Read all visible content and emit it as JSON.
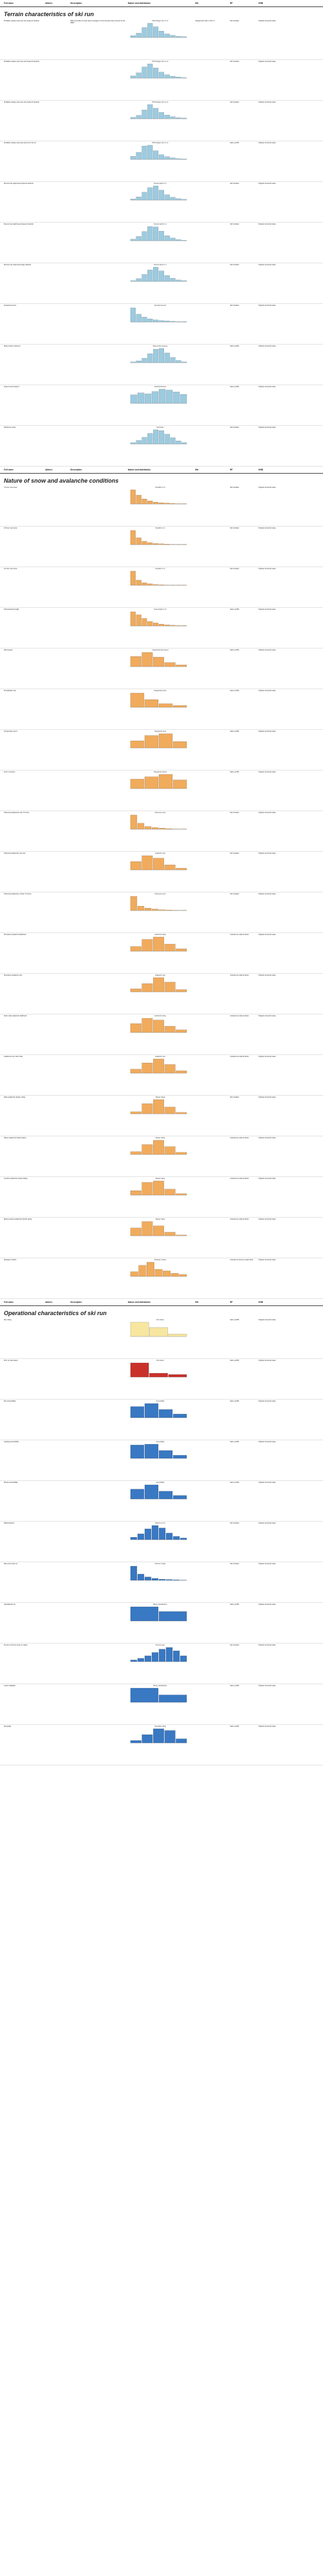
{
  "columns": [
    "Full name",
    "Abbrev.",
    "Description",
    "Nature and distribution",
    "Sfd",
    "RF",
    "GNB"
  ],
  "sections": [
    {
      "title": "Terrain characteristics of ski run",
      "color": "#9ccbe0",
      "rows": [
        {
          "full": "Probable release area max size frequent hazards",
          "abbrev": "",
          "desc": "95th percentile of mean area of polygons of the forecast area covered by the DEM.",
          "chart_title": "PRA Polygon size in m²",
          "sfd": "Categorical (n=5): 0–50 m²...",
          "rf": "Not included",
          "gnb": "Original numerical value",
          "bars": [
            5,
            12,
            28,
            40,
            30,
            18,
            10,
            6,
            3,
            2
          ]
        },
        {
          "full": "Probable release area max size frequent hazards",
          "abbrev": "",
          "desc": "",
          "chart_title": "PRA Polygon size in m²",
          "sfd": "",
          "rf": "Not included",
          "gnb": "Original numerical value",
          "bars": [
            6,
            14,
            30,
            38,
            27,
            16,
            9,
            5,
            3,
            1
          ]
        },
        {
          "full": "Probable release area max size frequent hazards",
          "abbrev": "",
          "desc": "",
          "chart_title": "PRA Polygon size in m²",
          "sfd": "",
          "rf": "Not included",
          "gnb": "Original numerical value",
          "bars": [
            4,
            10,
            26,
            42,
            31,
            19,
            11,
            6,
            3,
            2
          ]
        },
        {
          "full": "Probable release area max percent of ski run",
          "abbrev": "",
          "desc": "",
          "chart_title": "PRA Polygon size in m²",
          "sfd": "",
          "rf": "Same as BN",
          "gnb": "Original numerical value",
          "bars": [
            8,
            18,
            34,
            36,
            22,
            12,
            7,
            4,
            2,
            1
          ]
        },
        {
          "full": "Runout max depth area frequent hazards",
          "abbrev": "",
          "desc": "",
          "chart_title": "Runout depth in m",
          "sfd": "",
          "rf": "Not included",
          "gnb": "Original numerical value",
          "bars": [
            3,
            9,
            22,
            35,
            40,
            28,
            15,
            8,
            4,
            2
          ]
        },
        {
          "full": "Runout max depth area frequent hazards",
          "abbrev": "",
          "desc": "",
          "chart_title": "Runout depth in m",
          "sfd": "",
          "rf": "Not included",
          "gnb": "Original numerical value",
          "bars": [
            4,
            11,
            24,
            37,
            36,
            25,
            13,
            7,
            3,
            1
          ]
        },
        {
          "full": "Runout max depth area large hazards",
          "abbrev": "",
          "desc": "",
          "chart_title": "Runout depth in m",
          "sfd": "",
          "rf": "Not included",
          "gnb": "Original numerical value",
          "bars": [
            2,
            8,
            20,
            33,
            41,
            30,
            17,
            9,
            4,
            2
          ]
        },
        {
          "full": "Forested percent",
          "abbrev": "",
          "desc": "",
          "chart_title": "Forested percent",
          "sfd": "",
          "rf": "Not included",
          "gnb": "Original numerical value",
          "bars": [
            40,
            22,
            14,
            9,
            6,
            4,
            3,
            2,
            1,
            1
          ]
        },
        {
          "full": "Slope incline maximum",
          "abbrev": "",
          "desc": "",
          "chart_title": "Slope incline degrees",
          "sfd": "",
          "rf": "Same as BN",
          "gnb": "Original numerical value",
          "bars": [
            2,
            5,
            12,
            24,
            36,
            38,
            26,
            14,
            6,
            2
          ]
        },
        {
          "full": "Aspect most frequent",
          "abbrev": "",
          "desc": "",
          "chart_title": "Cardinal direction",
          "sfd": "",
          "rf": "Same as BN",
          "gnb": "Original numerical value",
          "bars": [
            18,
            22,
            20,
            25,
            30,
            28,
            24,
            19
          ]
        },
        {
          "full": "Northness mean",
          "abbrev": "",
          "desc": "",
          "chart_title": "Northness",
          "sfd": "",
          "rf": "Not included",
          "gnb": "Original numerical value",
          "bars": [
            3,
            8,
            15,
            24,
            32,
            30,
            22,
            14,
            7,
            3
          ]
        }
      ]
    },
    {
      "title": "Nature of snow and avalanche conditions",
      "color": "#f0ab5d",
      "rows": [
        {
          "full": "72 hour new snow",
          "abbrev": "",
          "desc": "",
          "chart_title": "Snowfall in cm",
          "sfd": "",
          "rf": "Not included",
          "gnb": "Original numerical value",
          "bars": [
            45,
            28,
            16,
            10,
            6,
            4,
            3,
            2,
            1,
            1
          ]
        },
        {
          "full": "24 hour new snow",
          "abbrev": "",
          "desc": "",
          "chart_title": "Snowfall in cm",
          "sfd": "",
          "rf": "Not included",
          "gnb": "Original numerical value",
          "bars": [
            50,
            24,
            12,
            7,
            4,
            3,
            2,
            1,
            1,
            1
          ]
        },
        {
          "full": "12 hour new snow",
          "abbrev": "",
          "desc": "",
          "chart_title": "Snowfall in cm",
          "sfd": "",
          "rf": "Not included",
          "gnb": "Original numerical value",
          "bars": [
            55,
            20,
            10,
            6,
            3,
            2,
            1,
            1,
            1,
            1
          ]
        },
        {
          "full": "Total transport height",
          "abbrev": "",
          "desc": "",
          "chart_title": "Snow height in cm",
          "sfd": "",
          "rf": "Same as BN",
          "gnb": "Original numerical value",
          "bars": [
            38,
            30,
            20,
            12,
            8,
            5,
            3,
            2,
            1,
            1
          ]
        },
        {
          "full": "Wind speed",
          "abbrev": "",
          "desc": "",
          "chart_title": "Categorical wind speed",
          "sfd": "",
          "rf": "Same as BN",
          "gnb": "Original numerical value",
          "bars": [
            30,
            42,
            28,
            12,
            5
          ]
        },
        {
          "full": "Precipitation rate",
          "abbrev": "",
          "desc": "",
          "chart_title": "Categorical precip.",
          "sfd": "",
          "rf": "Same as BN",
          "gnb": "Original numerical value",
          "bars": [
            48,
            26,
            12,
            6
          ]
        },
        {
          "full": "Temperature trend",
          "abbrev": "",
          "desc": "",
          "chart_title": "Categorical temp",
          "sfd": "",
          "rf": "Same as BN",
          "gnb": "Original numerical value",
          "bars": [
            20,
            35,
            40,
            18
          ]
        },
        {
          "full": "Form of season",
          "abbrev": "",
          "desc": "",
          "chart_title": "Categorical season",
          "sfd": "",
          "rf": "Same as BN",
          "gnb": "Original numerical value",
          "bars": [
            24,
            30,
            36,
            22
          ]
        },
        {
          "full": "Observed avalanches last 72 hours",
          "abbrev": "",
          "desc": "",
          "chart_title": "Observed count",
          "sfd": "",
          "rf": "Not included",
          "gnb": "Original numerical value",
          "bars": [
            52,
            22,
            10,
            6,
            4,
            2,
            1,
            1
          ]
        },
        {
          "full": "Observed avalanche max size",
          "abbrev": "",
          "desc": "",
          "chart_title": "Avalanche size",
          "sfd": "",
          "rf": "Not included",
          "gnb": "Original numerical value",
          "bars": [
            20,
            34,
            28,
            12,
            4
          ]
        },
        {
          "full": "Observed avalanche number 72 hours",
          "abbrev": "",
          "desc": "",
          "chart_title": "Observed count",
          "sfd": "",
          "rf": "Not included",
          "gnb": "Original numerical value",
          "bars": [
            58,
            18,
            10,
            6,
            3,
            2,
            1,
            1
          ]
        },
        {
          "full": "Persistent avalanche likelihood",
          "abbrev": "",
          "desc": "",
          "chart_title": "Likelihood rating",
          "sfd": "",
          "rf": "Included as ordered factor",
          "gnb": "Original numerical value",
          "bars": [
            12,
            30,
            36,
            18,
            6
          ]
        },
        {
          "full": "Persistent avalanche size",
          "abbrev": "",
          "desc": "",
          "chart_title": "Avalanche size",
          "sfd": "",
          "rf": "Included as ordered factor",
          "gnb": "Original numerical value",
          "bars": [
            8,
            22,
            38,
            26,
            6
          ]
        },
        {
          "full": "Storm slab avalanche likelihood",
          "abbrev": "",
          "desc": "",
          "chart_title": "Likelihood rating",
          "sfd": "",
          "rf": "Included as ordered factor",
          "gnb": "Original numerical value",
          "bars": [
            20,
            32,
            28,
            14,
            6
          ]
        },
        {
          "full": "Avalanche size storm slab",
          "abbrev": "",
          "desc": "",
          "chart_title": "Avalanche size",
          "sfd": "",
          "rf": "Included as ordered factor",
          "gnb": "Original numerical value",
          "bars": [
            10,
            26,
            36,
            22,
            6
          ]
        },
        {
          "full": "Daily avalanche danger rating",
          "abbrev": "",
          "desc": "",
          "chart_title": "Danger rating",
          "sfd": "",
          "rf": "Not included",
          "gnb": "Original numerical value",
          "bars": [
            6,
            30,
            42,
            20,
            4
          ]
        },
        {
          "full": "Alpine avalanche hazard rating",
          "abbrev": "",
          "desc": "",
          "chart_title": "Danger rating",
          "sfd": "",
          "rf": "Included as ordered factor",
          "gnb": "Original numerical value",
          "bars": [
            8,
            28,
            40,
            22,
            6
          ]
        },
        {
          "full": "Treeline avalanche hazard rating",
          "abbrev": "",
          "desc": "",
          "chart_title": "Danger rating",
          "sfd": "",
          "rf": "Included as ordered factor",
          "gnb": "Original numerical value",
          "bars": [
            12,
            34,
            38,
            16,
            4
          ]
        },
        {
          "full": "Below treeline avalanche hazard rating",
          "abbrev": "",
          "desc": "",
          "chart_title": "Danger rating",
          "sfd": "",
          "rf": "Included as ordered factor",
          "gnb": "Original numerical value",
          "bars": [
            22,
            40,
            28,
            10,
            2
          ]
        },
        {
          "full": "Strategic mindset",
          "abbrev": "",
          "desc": "",
          "chart_title": "Strategic mindset",
          "sfd": "",
          "rf": "Included as dummy coded factor",
          "gnb": "Original numerical value",
          "bars": [
            12,
            28,
            36,
            18,
            14,
            8,
            5
          ]
        }
      ]
    },
    {
      "title": "Operational characteristics of ski run",
      "color": "#3978c2",
      "rows": [
        {
          "full": "Run rating",
          "abbrev": "",
          "desc": "",
          "chart_title": "Run status",
          "sfd": "",
          "rf": "Same as BN",
          "gnb": "Original numerical value",
          "bars": [
            48,
            30,
            8
          ],
          "colors": [
            "#f6e6a0",
            "#f6e6a0",
            "#f6e6a0"
          ]
        },
        {
          "full": "Prior run last status",
          "abbrev": "",
          "desc": "",
          "chart_title": "Run status",
          "sfd": "",
          "rf": "Same as BN",
          "gnb": "Original numerical value",
          "bars": [
            44,
            12,
            8
          ],
          "colors": [
            "#c9322b",
            "#c9322b",
            "#c9322b"
          ]
        },
        {
          "full": "Run accessibility",
          "abbrev": "",
          "desc": "",
          "chart_title": "Accessibility",
          "sfd": "",
          "rf": "Same as BN",
          "gnb": "Original numerical value",
          "bars": [
            30,
            38,
            22,
            10
          ]
        },
        {
          "full": "Landing accessibility",
          "abbrev": "",
          "desc": "",
          "chart_title": "Accessibility",
          "sfd": "",
          "rf": "Same as BN",
          "gnb": "Original numerical value",
          "bars": [
            34,
            36,
            20,
            8
          ]
        },
        {
          "full": "Pickup accessibility",
          "abbrev": "",
          "desc": "",
          "chart_title": "Accessibility",
          "sfd": "",
          "rf": "Same as BN",
          "gnb": "Original numerical value",
          "bars": [
            28,
            40,
            22,
            10
          ]
        },
        {
          "full": "Flight distance",
          "abbrev": "",
          "desc": "",
          "chart_title": "Distance in km",
          "sfd": "",
          "rf": "Not included",
          "gnb": "Original numerical value",
          "bars": [
            6,
            14,
            26,
            34,
            28,
            16,
            8,
            4
          ]
        },
        {
          "full": "Days since last run",
          "abbrev": "",
          "desc": "",
          "chart_title": "Number of days",
          "sfd": "",
          "rf": "Not included",
          "gnb": "Original numerical value",
          "bars": [
            50,
            22,
            12,
            7,
            4,
            3,
            2,
            1
          ]
        },
        {
          "full": "Operational rule",
          "abbrev": "",
          "desc": "",
          "chart_title": "Binary classification",
          "sfd": "",
          "rf": "Same as BN",
          "gnb": "Original numerical value",
          "bars": [
            42,
            28
          ]
        },
        {
          "full": "Percent of tenure area run status",
          "abbrev": "",
          "desc": "",
          "chart_title": "Percent open",
          "sfd": "",
          "rf": "Not included",
          "gnb": "Original numerical value",
          "bars": [
            4,
            8,
            14,
            22,
            30,
            34,
            26,
            14
          ]
        },
        {
          "full": "Guest mitigation",
          "abbrev": "",
          "desc": "",
          "chart_title": "Binary classification",
          "sfd": "",
          "rf": "Same as BN",
          "gnb": "Original numerical value",
          "bars": [
            46,
            24
          ]
        },
        {
          "full": "Ski quality",
          "abbrev": "",
          "desc": "",
          "chart_title": "Ski quality rating",
          "sfd": "",
          "rf": "Same as BN",
          "gnb": "Original numerical value",
          "bars": [
            6,
            20,
            34,
            30,
            10
          ]
        }
      ]
    }
  ]
}
